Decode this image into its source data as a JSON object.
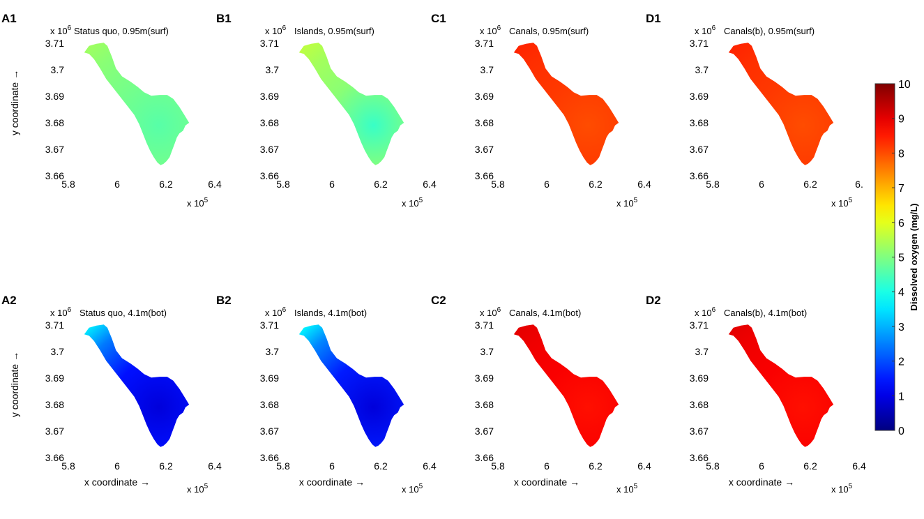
{
  "chart_data": {
    "type": "heatmap",
    "description_key": "dissolved-oxygen-map-panels",
    "x_multiplier_label": "x 10",
    "x_multiplier_exp": "5",
    "y_multiplier_label": "x 10",
    "y_multiplier_exp": "6",
    "xlim": [
      5.8,
      6.4
    ],
    "ylim": [
      3.66,
      3.71
    ],
    "x_ticks": [
      "5.8",
      "6",
      "6.2",
      "6.4"
    ],
    "x_ticks_truncated": [
      "5.8",
      "6",
      "6.2",
      "6."
    ],
    "y_ticks": [
      "3.71",
      "3.7",
      "3.69",
      "3.68",
      "3.67",
      "3.66"
    ],
    "xlabel": "x coordinate →",
    "ylabel": "y coordinate →",
    "colorbar": {
      "label": "Dissolved oxygen (mg/L)",
      "range": [
        0,
        10
      ],
      "ticks": [
        "0",
        "1",
        "2",
        "3",
        "4",
        "5",
        "6",
        "7",
        "8",
        "9",
        "10"
      ],
      "colormap": "jet"
    },
    "panels": [
      {
        "id": "A1",
        "title": "Status quo, 0.95m(surf)",
        "do_mean": 4.9,
        "do_min": 4.6,
        "do_max": 5.3,
        "row": 0,
        "col": 0
      },
      {
        "id": "B1",
        "title": "Islands, 0.95m(surf)",
        "do_mean": 5.1,
        "do_min": 4.3,
        "do_max": 5.6,
        "row": 0,
        "col": 1
      },
      {
        "id": "C1",
        "title": "Canals, 0.95m(surf)",
        "do_mean": 8.2,
        "do_min": 8.0,
        "do_max": 8.4,
        "row": 0,
        "col": 2
      },
      {
        "id": "D1",
        "title": "Canals(b), 0.95m(surf)",
        "do_mean": 8.2,
        "do_min": 8.0,
        "do_max": 8.4,
        "row": 0,
        "col": 3
      },
      {
        "id": "A2",
        "title": "Status quo, 4.1m(bot)",
        "do_mean": 1.4,
        "do_min": 0.9,
        "do_max": 3.5,
        "row": 1,
        "col": 0
      },
      {
        "id": "B2",
        "title": "Islands, 4.1m(bot)",
        "do_mean": 1.5,
        "do_min": 0.9,
        "do_max": 3.6,
        "row": 1,
        "col": 1
      },
      {
        "id": "C2",
        "title": "Canals, 4.1m(bot)",
        "do_mean": 8.8,
        "do_min": 8.6,
        "do_max": 9.0,
        "row": 1,
        "col": 2
      },
      {
        "id": "D2",
        "title": "Canals(b), 4.1m(bot)",
        "do_mean": 8.8,
        "do_min": 8.6,
        "do_max": 9.0,
        "row": 1,
        "col": 3
      }
    ]
  }
}
